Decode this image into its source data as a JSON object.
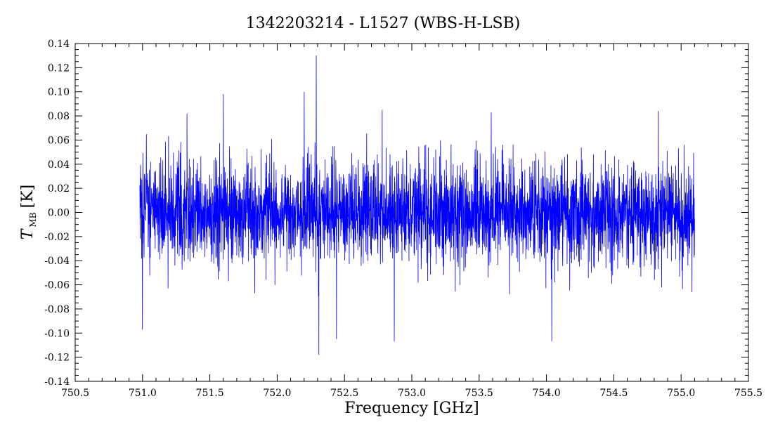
{
  "chart_data": {
    "type": "line",
    "title": "1342203214 - L1527 (WBS-H-LSB)",
    "xlabel": "Frequency [GHz]",
    "ylabel": {
      "symbol": "T",
      "subscript": "MB",
      "unit": "[K]"
    },
    "xlim": [
      750.5,
      755.5
    ],
    "ylim": [
      -0.14,
      0.14
    ],
    "x_ticks": [
      "750.5",
      "751.0",
      "751.5",
      "752.0",
      "752.5",
      "753.0",
      "753.5",
      "754.0",
      "754.5",
      "755.0",
      "755.5"
    ],
    "y_ticks": [
      "-0.14",
      "-0.12",
      "-0.10",
      "-0.08",
      "-0.06",
      "-0.04",
      "-0.02",
      "0.00",
      "0.02",
      "0.04",
      "0.06",
      "0.08",
      "0.10",
      "0.12",
      "0.14"
    ],
    "grid": false,
    "legend": "none",
    "series": [
      {
        "color": "#0000ff",
        "x_start": 750.98,
        "x_end": 755.1,
        "n_points": 3400,
        "rms": 0.03,
        "peaks": [
          {
            "x": 752.29,
            "y": 0.13
          },
          {
            "x": 752.2,
            "y": 0.1
          },
          {
            "x": 752.31,
            "y": -0.118
          },
          {
            "x": 751.0,
            "y": -0.097
          },
          {
            "x": 754.04,
            "y": -0.107
          },
          {
            "x": 752.87,
            "y": -0.107
          },
          {
            "x": 752.44,
            "y": -0.105
          },
          {
            "x": 751.6,
            "y": 0.098
          },
          {
            "x": 754.83,
            "y": 0.084
          },
          {
            "x": 753.59,
            "y": 0.083
          },
          {
            "x": 751.33,
            "y": 0.082
          },
          {
            "x": 755.08,
            "y": -0.066
          },
          {
            "x": 752.78,
            "y": 0.085
          }
        ]
      }
    ]
  }
}
